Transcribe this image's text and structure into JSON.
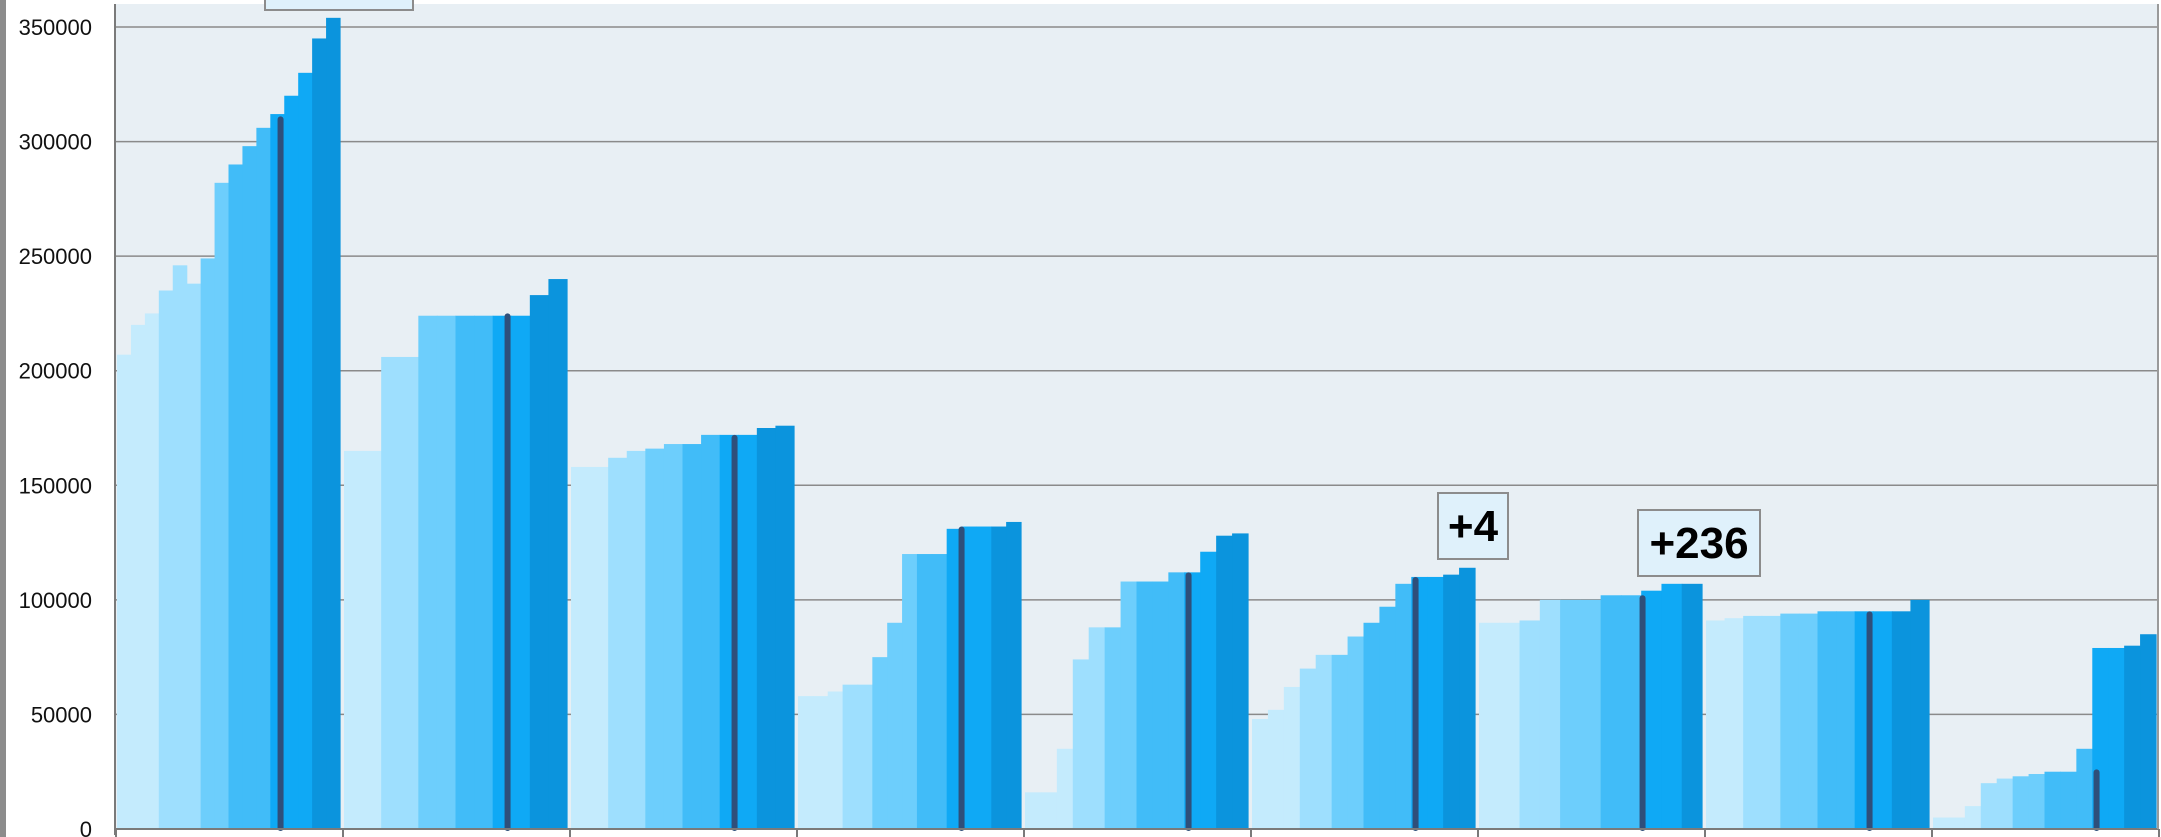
{
  "chart_data": {
    "type": "bar",
    "ylim": [
      0,
      350000
    ],
    "yticks": [
      0,
      50000,
      100000,
      150000,
      200000,
      250000,
      300000,
      350000
    ],
    "ytick_labels": [
      "0",
      "50000",
      "100000",
      "150000",
      "200000",
      "250000",
      "300000",
      "350000"
    ],
    "grid": true,
    "colors": {
      "plot_bg": "#e8eff4",
      "grid": "#8a8a8a",
      "steps": [
        "#c4ebfd",
        "#9edffe",
        "#6dcefc",
        "#41bcf8",
        "#0fa9f5",
        "#0b94dd"
      ],
      "marker": "#2f4f7a"
    },
    "groups": [
      {
        "values": [
          207000,
          220000,
          225000,
          235000,
          246000,
          238000,
          249000,
          282000,
          290000,
          298000,
          306000,
          312000,
          320000,
          330000,
          345000,
          354000
        ],
        "marker": 311000
      },
      {
        "values": [
          165000,
          165000,
          206000,
          206000,
          224000,
          224000,
          224000,
          224000,
          224000,
          224000,
          233000,
          240000
        ],
        "marker": 225000
      },
      {
        "values": [
          158000,
          158000,
          162000,
          165000,
          166000,
          168000,
          168000,
          172000,
          172000,
          172000,
          175000,
          176000
        ],
        "marker": 172000
      },
      {
        "values": [
          58000,
          58000,
          60000,
          63000,
          63000,
          75000,
          90000,
          120000,
          120000,
          120000,
          131000,
          132000,
          132000,
          132000,
          134000
        ],
        "marker": 132000
      },
      {
        "values": [
          16000,
          16000,
          35000,
          74000,
          88000,
          88000,
          108000,
          108000,
          108000,
          112000,
          112000,
          121000,
          128000,
          129000
        ],
        "marker": 112000
      },
      {
        "values": [
          48000,
          52000,
          62000,
          70000,
          76000,
          76000,
          84000,
          90000,
          97000,
          107000,
          110000,
          110000,
          111000,
          114000
        ],
        "marker": 110000
      },
      {
        "values": [
          90000,
          90000,
          91000,
          100000,
          100000,
          100000,
          102000,
          102000,
          104000,
          107000,
          107000
        ],
        "marker": 102000
      },
      {
        "values": [
          91000,
          92000,
          93000,
          93000,
          94000,
          94000,
          95000,
          95000,
          95000,
          95000,
          95000,
          100000
        ],
        "marker": 95000
      },
      {
        "values": [
          5000,
          5000,
          10000,
          20000,
          22000,
          23000,
          24000,
          25000,
          25000,
          35000,
          79000,
          79000,
          80000,
          85000
        ],
        "marker": 26000
      }
    ],
    "annotations": [
      {
        "group_index": 0,
        "text": ""
      },
      {
        "group_index": 5,
        "text": "+4"
      },
      {
        "group_index": 6,
        "text": "+236"
      }
    ]
  }
}
